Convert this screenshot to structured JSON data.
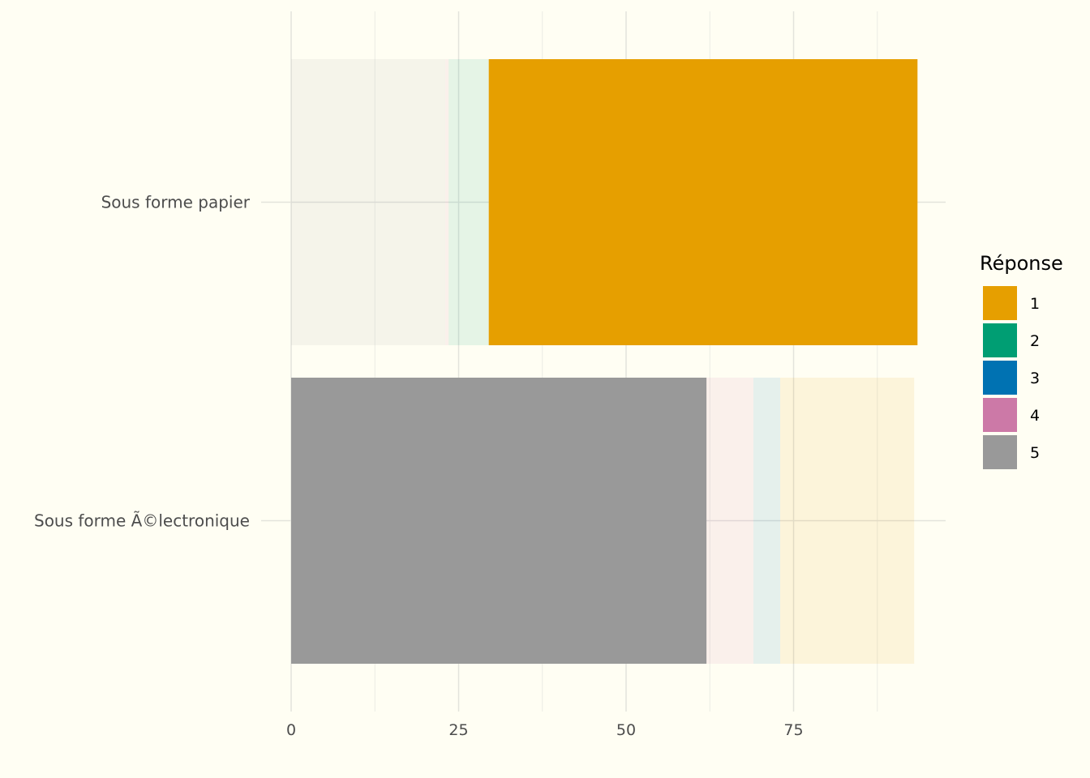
{
  "chart_data": {
    "type": "bar",
    "orientation": "horizontal",
    "stacked": true,
    "categories": [
      "Sous forme papier",
      "Sous forme Ã©lectronique"
    ],
    "series": [
      {
        "name": "1",
        "color": "#E69F00",
        "values": [
          64,
          20
        ],
        "highlighted": [
          true,
          false
        ]
      },
      {
        "name": "2",
        "color": "#009E73",
        "values": [
          6,
          0
        ],
        "highlighted": [
          false,
          false
        ]
      },
      {
        "name": "3",
        "color": "#0072B2",
        "values": [
          0,
          4
        ],
        "highlighted": [
          false,
          false
        ]
      },
      {
        "name": "4",
        "color": "#CC79A7",
        "values": [
          0.5,
          7
        ],
        "highlighted": [
          false,
          false
        ]
      },
      {
        "name": "5",
        "color": "#999999",
        "values": [
          23,
          62
        ],
        "highlighted": [
          false,
          true
        ]
      }
    ],
    "stack_order": [
      "5",
      "4",
      "3",
      "2",
      "1"
    ],
    "x_ticks": [
      0,
      25,
      50,
      75
    ],
    "xlim": [
      0,
      98
    ],
    "grid": true,
    "legend": {
      "title": "Réponse",
      "placement": "right"
    },
    "title": "",
    "xlabel": "",
    "ylabel": ""
  }
}
